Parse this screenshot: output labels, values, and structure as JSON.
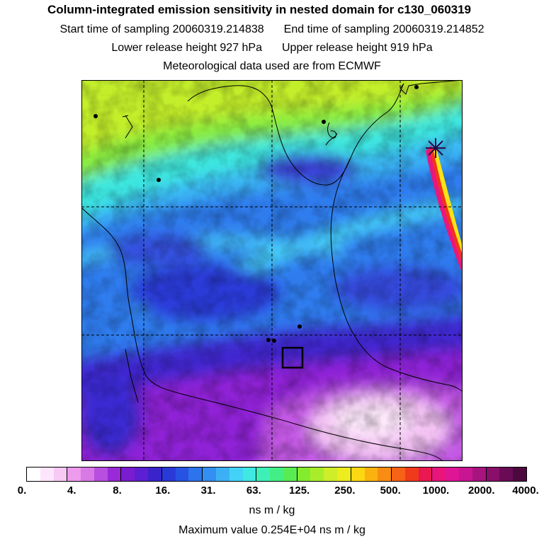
{
  "title": "Column-integrated emission sensitivity in nested domain for c130_060319",
  "sampling": {
    "start": "Start time of sampling 20060319.214838",
    "end": "End time of sampling 20060319.214852"
  },
  "release": {
    "lower": "Lower release height  927 hPa",
    "upper": "Upper release height  919 hPa"
  },
  "met_data": "Meteorological data used are from ECMWF",
  "colorbar": {
    "ticks": [
      "0.",
      "4.",
      "8.",
      "16.",
      "31.",
      "63.",
      "125.",
      "250.",
      "500.",
      "1000.",
      "2000.",
      "4000."
    ],
    "colors": [
      "#ffffff",
      "#fde6fb",
      "#f7c9f4",
      "#ec9bed",
      "#d879e6",
      "#b84fe0",
      "#9a29d8",
      "#7a1ccf",
      "#5c1fd1",
      "#3b23cc",
      "#2a3ad8",
      "#2753e3",
      "#2d73ec",
      "#3390f2",
      "#3cb0f5",
      "#43d2f7",
      "#3fe8e0",
      "#3ef0b8",
      "#42ef86",
      "#59ec52",
      "#84ec2e",
      "#a9ed2a",
      "#cdee29",
      "#ecec1e",
      "#fbd812",
      "#fbb210",
      "#f98c12",
      "#f66216",
      "#f03a1c",
      "#ea1850",
      "#e8157a",
      "#de1595",
      "#c81592",
      "#a8147f",
      "#8a0f6a",
      "#6a0b56",
      "#4d0840"
    ],
    "units": "ns m / kg"
  },
  "max_value": "Maximum value  0.254E+04 ns m / kg"
}
